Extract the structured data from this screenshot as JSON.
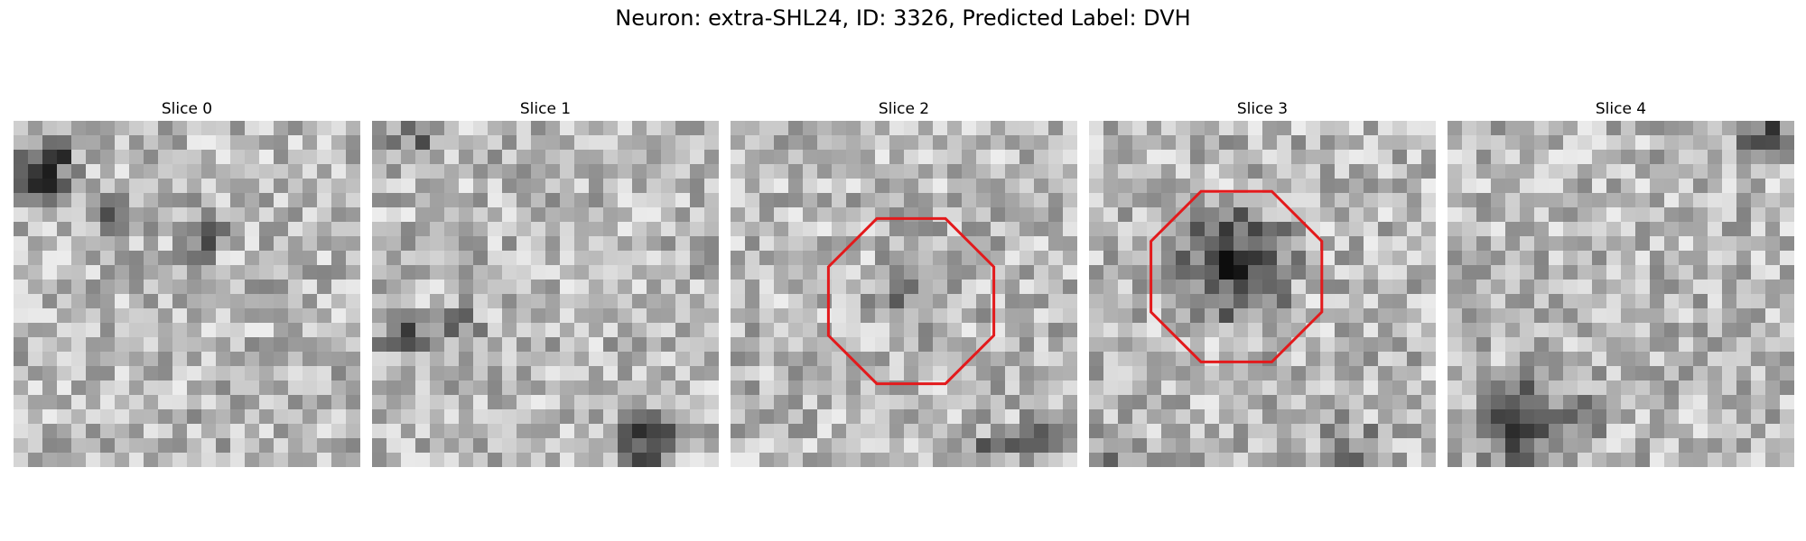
{
  "figure": {
    "title": "Neuron: extra-SHL24, ID: 3326, Predicted Label: DVH"
  },
  "panels": [
    {
      "title": "Slice 0",
      "roi_outline": false
    },
    {
      "title": "Slice 1",
      "roi_outline": false
    },
    {
      "title": "Slice 2",
      "roi_outline": true
    },
    {
      "title": "Slice 3",
      "roi_outline": true
    },
    {
      "title": "Slice 4",
      "roi_outline": false
    }
  ],
  "colors": {
    "roi_outline": "#e31a1c",
    "colormap": "grayscale"
  }
}
